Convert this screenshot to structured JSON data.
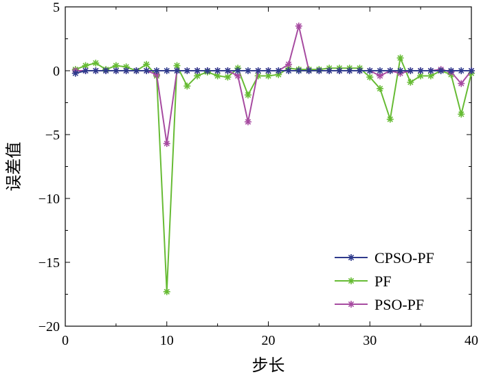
{
  "chart_data": {
    "type": "line",
    "xlabel": "步长",
    "ylabel": "误差值",
    "xlim": [
      0,
      40
    ],
    "ylim": [
      -20,
      5
    ],
    "xticks": [
      0,
      10,
      20,
      30,
      40
    ],
    "yticks": [
      5,
      0,
      -5,
      -10,
      -15,
      -20
    ],
    "grid": false,
    "legend_position": "bottom-right",
    "marker": "*",
    "x": [
      1,
      2,
      3,
      4,
      5,
      6,
      7,
      8,
      9,
      10,
      11,
      12,
      13,
      14,
      15,
      16,
      17,
      18,
      19,
      20,
      21,
      22,
      23,
      24,
      25,
      26,
      27,
      28,
      29,
      30,
      31,
      32,
      33,
      34,
      35,
      36,
      37,
      38,
      39,
      40
    ],
    "series": [
      {
        "name": "CPSO-PF",
        "color": "#2e3a8c",
        "values": [
          -0.2,
          0,
          0,
          0,
          0,
          0,
          0,
          0,
          0,
          0,
          0,
          0,
          0,
          0,
          0,
          0,
          0,
          0,
          0,
          0,
          0,
          0,
          0,
          0,
          0,
          0,
          0,
          0,
          0,
          0,
          0,
          0,
          0,
          0,
          0,
          0,
          0,
          0,
          0,
          0
        ]
      },
      {
        "name": "PF",
        "color": "#66bb33",
        "values": [
          0.1,
          0.4,
          0.6,
          0.1,
          0.4,
          0.3,
          0.0,
          0.5,
          -0.4,
          -17.3,
          0.4,
          -1.2,
          -0.4,
          -0.1,
          -0.4,
          -0.5,
          0.2,
          -1.9,
          -0.4,
          -0.4,
          -0.3,
          0.2,
          0.1,
          0.1,
          0.1,
          0.2,
          0.2,
          0.2,
          0.2,
          -0.5,
          -1.4,
          -3.8,
          1.0,
          -0.9,
          -0.4,
          -0.4,
          0.0,
          -0.3,
          -3.4,
          -0.2
        ]
      },
      {
        "name": "PSO-PF",
        "color": "#a64aa0",
        "values": [
          0,
          0,
          0,
          0,
          0,
          0,
          0,
          0,
          -0.3,
          -5.7,
          0,
          0,
          0,
          0,
          0,
          0,
          -0.4,
          -4.0,
          0,
          0,
          0,
          0.5,
          3.5,
          0,
          0,
          0,
          0,
          0,
          0,
          0,
          -0.4,
          0,
          -0.2,
          0,
          0,
          0,
          0.1,
          -0.1,
          -1.0,
          0
        ]
      }
    ]
  }
}
